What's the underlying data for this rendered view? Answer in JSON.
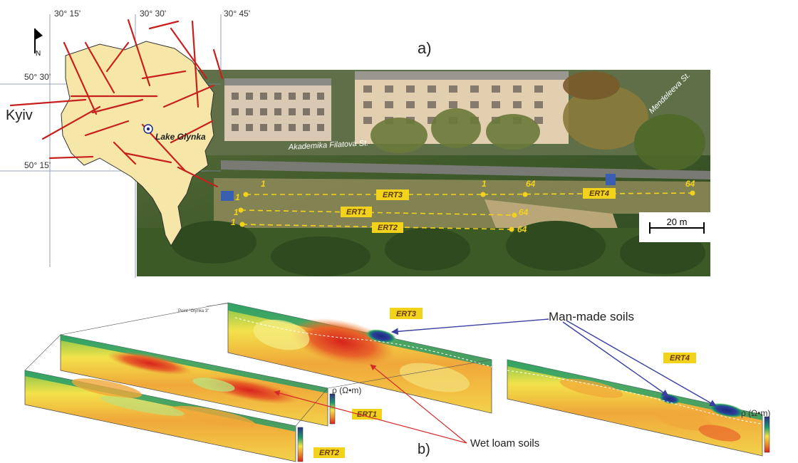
{
  "panel_a": {
    "label": "a)",
    "map": {
      "longitudes": [
        "30° 15'",
        "30° 30'",
        "30° 45'"
      ],
      "latitudes": [
        "50° 30'",
        "50° 15'"
      ],
      "north_label": "N",
      "city_label": "Kyiv",
      "lake_label": "Lake Glynka"
    },
    "photo": {
      "street_filatova": "Akademika Filatova St.",
      "street_mendeleeva": "Mendeleeva St.",
      "scale_bar": "20 m",
      "lines": [
        {
          "name": "ERT3",
          "start": "1",
          "end": "64"
        },
        {
          "name": "ERT4",
          "start": "1",
          "end": "64"
        },
        {
          "name": "ERT1",
          "start": "1",
          "end": "64"
        },
        {
          "name": "ERT2",
          "start": "1",
          "end": "64"
        }
      ]
    }
  },
  "panel_b": {
    "label": "b)",
    "point_label": "Point \"Glynka 3\"",
    "sections": [
      "ERT3",
      "ERT1",
      "ERT2",
      "ERT4"
    ],
    "annotations": {
      "man_made": "Man-made soils",
      "wet_loam": "Wet loam soils"
    },
    "colorbar_label": "ρ (Ω•m)",
    "colors": {
      "high": "#2b2f8a",
      "mid_high": "#1f9a6a",
      "mid": "#f4e24a",
      "low": "#e8842a",
      "lowest": "#d8231d",
      "accent_line": "#f2d21b",
      "arrow_blue": "#3a3fa0",
      "arrow_red": "#d42a2a"
    }
  }
}
